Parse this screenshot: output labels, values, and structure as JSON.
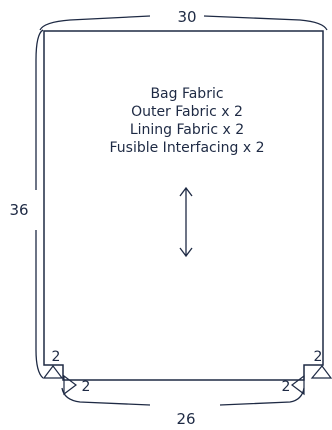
{
  "pattern_piece": {
    "labels": [
      "Bag Fabric",
      "Outer Fabric x 2",
      "Lining Fabric x 2",
      "Fusible Interfacing x 2"
    ],
    "dimensions": {
      "top_width": "30",
      "height": "36",
      "bottom_width": "26",
      "left_dart_vertical": "2",
      "left_dart_horizontal": "2",
      "right_dart_vertical": "2",
      "right_dart_horizontal": "2"
    }
  },
  "colors": {
    "outline": "#1e2a44",
    "background": "#ffffff"
  }
}
